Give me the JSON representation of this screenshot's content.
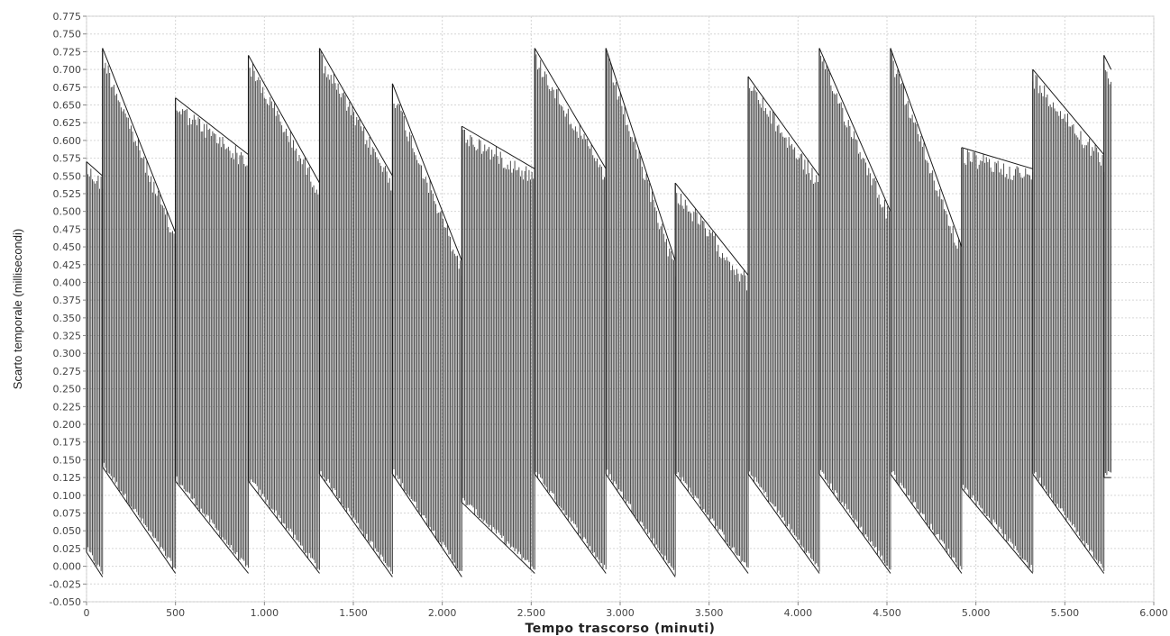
{
  "chart_data": {
    "type": "line",
    "xlabel": "Tempo trascorso (minuti)",
    "ylabel": "Scarto temporale (millisecondi)",
    "xlim": [
      0,
      6000
    ],
    "ylim": [
      -0.05,
      0.775
    ],
    "x_ticks": [
      "0",
      "500",
      "1.000",
      "1.500",
      "2.000",
      "2.500",
      "3.000",
      "3.500",
      "4.000",
      "4.500",
      "5.000",
      "5.500",
      "6.000"
    ],
    "x_tick_values": [
      0,
      500,
      1000,
      1500,
      2000,
      2500,
      3000,
      3500,
      4000,
      4500,
      5000,
      5500,
      6000
    ],
    "y_ticks": [
      "-0.050",
      "-0.025",
      "0.000",
      "0.025",
      "0.050",
      "0.075",
      "0.100",
      "0.125",
      "0.150",
      "0.175",
      "0.200",
      "0.225",
      "0.250",
      "0.275",
      "0.300",
      "0.325",
      "0.350",
      "0.375",
      "0.400",
      "0.425",
      "0.450",
      "0.475",
      "0.500",
      "0.525",
      "0.550",
      "0.575",
      "0.600",
      "0.625",
      "0.650",
      "0.675",
      "0.700",
      "0.725",
      "0.750",
      "0.775"
    ],
    "y_tick_values": [
      -0.05,
      -0.025,
      0,
      0.025,
      0.05,
      0.075,
      0.1,
      0.125,
      0.15,
      0.175,
      0.2,
      0.225,
      0.25,
      0.275,
      0.3,
      0.325,
      0.35,
      0.375,
      0.4,
      0.425,
      0.45,
      0.475,
      0.5,
      0.525,
      0.55,
      0.575,
      0.6,
      0.625,
      0.65,
      0.675,
      0.7,
      0.725,
      0.75,
      0.775
    ],
    "grid": true,
    "series": [
      {
        "color": "#1a1a1a",
        "segments": [
          {
            "x_start": 0,
            "x_end": 90,
            "upper_start": 0.57,
            "upper_end": 0.55,
            "lower_start": 0.02,
            "lower_end": -0.015
          },
          {
            "x_start": 90,
            "x_end": 500,
            "upper_start": 0.73,
            "upper_end": 0.47,
            "lower_start": 0.14,
            "lower_end": -0.01
          },
          {
            "x_start": 500,
            "x_end": 910,
            "upper_start": 0.66,
            "upper_end": 0.58,
            "lower_start": 0.12,
            "lower_end": -0.01
          },
          {
            "x_start": 910,
            "x_end": 1310,
            "upper_start": 0.72,
            "upper_end": 0.54,
            "lower_start": 0.12,
            "lower_end": -0.01
          },
          {
            "x_start": 1310,
            "x_end": 1720,
            "upper_start": 0.73,
            "upper_end": 0.55,
            "lower_start": 0.13,
            "lower_end": -0.015
          },
          {
            "x_start": 1720,
            "x_end": 2110,
            "upper_start": 0.68,
            "upper_end": 0.43,
            "lower_start": 0.13,
            "lower_end": -0.015
          },
          {
            "x_start": 2110,
            "x_end": 2520,
            "upper_start": 0.62,
            "upper_end": 0.56,
            "lower_start": 0.09,
            "lower_end": -0.01
          },
          {
            "x_start": 2520,
            "x_end": 2920,
            "upper_start": 0.73,
            "upper_end": 0.56,
            "lower_start": 0.13,
            "lower_end": -0.01
          },
          {
            "x_start": 2920,
            "x_end": 3310,
            "upper_start": 0.73,
            "upper_end": 0.43,
            "lower_start": 0.13,
            "lower_end": -0.015
          },
          {
            "x_start": 3310,
            "x_end": 3720,
            "upper_start": 0.54,
            "upper_end": 0.41,
            "lower_start": 0.13,
            "lower_end": -0.01
          },
          {
            "x_start": 3720,
            "x_end": 4120,
            "upper_start": 0.69,
            "upper_end": 0.55,
            "lower_start": 0.13,
            "lower_end": -0.01
          },
          {
            "x_start": 4120,
            "x_end": 4520,
            "upper_start": 0.73,
            "upper_end": 0.5,
            "lower_start": 0.13,
            "lower_end": -0.01
          },
          {
            "x_start": 4520,
            "x_end": 4920,
            "upper_start": 0.73,
            "upper_end": 0.45,
            "lower_start": 0.13,
            "lower_end": -0.01
          },
          {
            "x_start": 4920,
            "x_end": 5320,
            "upper_start": 0.59,
            "upper_end": 0.56,
            "lower_start": 0.11,
            "lower_end": -0.01
          },
          {
            "x_start": 5320,
            "x_end": 5720,
            "upper_start": 0.7,
            "upper_end": 0.58,
            "lower_start": 0.13,
            "lower_end": -0.01
          },
          {
            "x_start": 5720,
            "x_end": 5760,
            "upper_start": 0.72,
            "upper_end": 0.7,
            "lower_start": 0.125,
            "lower_end": 0.125
          }
        ]
      }
    ]
  }
}
